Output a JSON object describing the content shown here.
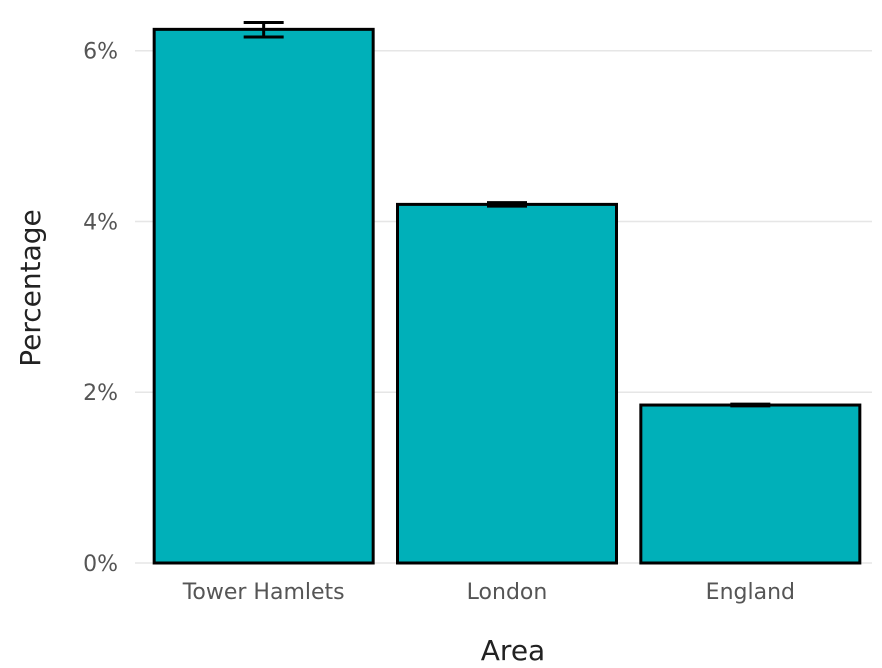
{
  "chart_data": {
    "type": "bar",
    "categories": [
      "Tower Hamlets",
      "London",
      "England"
    ],
    "values": [
      6.25,
      4.2,
      1.85
    ],
    "error_bars": [
      {
        "low": 6.16,
        "high": 6.33
      },
      {
        "low": 4.18,
        "high": 4.22
      },
      {
        "low": 1.84,
        "high": 1.86
      }
    ],
    "xlabel": "Area",
    "ylabel": "Percentage",
    "ylim": [
      0,
      6.5
    ],
    "yticks": [
      {
        "value": 0,
        "label": "0%"
      },
      {
        "value": 2,
        "label": "2%"
      },
      {
        "value": 4,
        "label": "4%"
      },
      {
        "value": 6,
        "label": "6%"
      }
    ],
    "grid": true,
    "legend": "none",
    "bar_color": "#00B0B9"
  }
}
